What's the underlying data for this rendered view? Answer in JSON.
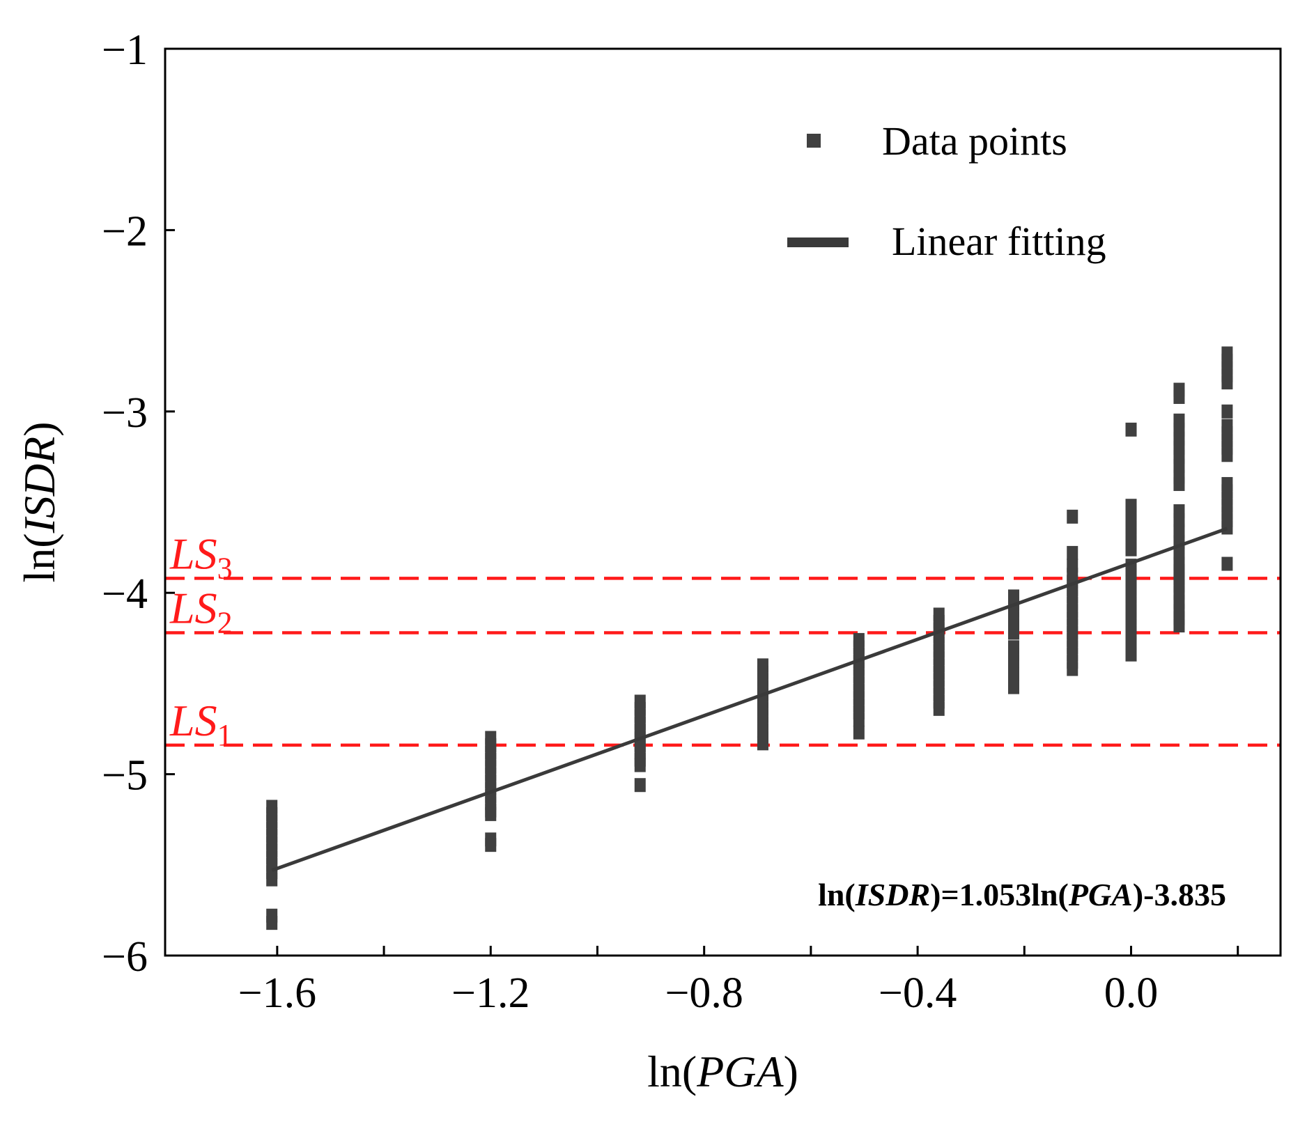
{
  "colors": {
    "data": "#404040",
    "fit": "#3a3a3a",
    "limit": "#ff1a1a",
    "axis": "#000000"
  },
  "chart_data": {
    "type": "scatter",
    "title": "",
    "xlabel": {
      "prefix": "ln(",
      "var": "PGA",
      "suffix": ")"
    },
    "ylabel": {
      "prefix": "ln(",
      "var": "ISDR",
      "suffix": ")"
    },
    "xlim": [
      -1.81,
      0.28
    ],
    "ylim": [
      -6,
      -1
    ],
    "xticks": [
      -1.6,
      -1.2,
      -0.8,
      -0.4,
      0.0
    ],
    "xtick_labels": [
      "−1.6",
      "−1.2",
      "−0.8",
      "−0.4",
      "0.0"
    ],
    "x_minor_ticks": [
      -1.4,
      -1.0,
      -0.6,
      -0.2,
      0.2
    ],
    "yticks": [
      -6,
      -5,
      -4,
      -3,
      -2,
      -1
    ],
    "ytick_labels": [
      "−6",
      "−5",
      "−4",
      "−3",
      "−2",
      "−1"
    ],
    "legend": {
      "position": "top-right",
      "entries": [
        {
          "label": "Data points",
          "marker": "square"
        },
        {
          "label": "Linear fitting",
          "marker": "line"
        }
      ]
    },
    "series": [
      {
        "name": "Data points",
        "points": [
          {
            "x": -1.61,
            "y": -5.18
          },
          {
            "x": -1.61,
            "y": -5.22
          },
          {
            "x": -1.61,
            "y": -5.26
          },
          {
            "x": -1.61,
            "y": -5.3
          },
          {
            "x": -1.61,
            "y": -5.34
          },
          {
            "x": -1.61,
            "y": -5.38
          },
          {
            "x": -1.61,
            "y": -5.42
          },
          {
            "x": -1.61,
            "y": -5.46
          },
          {
            "x": -1.61,
            "y": -5.5
          },
          {
            "x": -1.61,
            "y": -5.54
          },
          {
            "x": -1.61,
            "y": -5.58
          },
          {
            "x": -1.61,
            "y": -5.78
          },
          {
            "x": -1.61,
            "y": -5.82
          },
          {
            "x": -1.2,
            "y": -4.8
          },
          {
            "x": -1.2,
            "y": -4.84
          },
          {
            "x": -1.2,
            "y": -4.88
          },
          {
            "x": -1.2,
            "y": -4.92
          },
          {
            "x": -1.2,
            "y": -4.96
          },
          {
            "x": -1.2,
            "y": -5.0
          },
          {
            "x": -1.2,
            "y": -5.04
          },
          {
            "x": -1.2,
            "y": -5.08
          },
          {
            "x": -1.2,
            "y": -5.12
          },
          {
            "x": -1.2,
            "y": -5.16
          },
          {
            "x": -1.2,
            "y": -5.2
          },
          {
            "x": -1.2,
            "y": -5.22
          },
          {
            "x": -1.2,
            "y": -5.36
          },
          {
            "x": -1.2,
            "y": -5.39
          },
          {
            "x": -0.92,
            "y": -4.6
          },
          {
            "x": -0.92,
            "y": -4.64
          },
          {
            "x": -0.92,
            "y": -4.68
          },
          {
            "x": -0.92,
            "y": -4.72
          },
          {
            "x": -0.92,
            "y": -4.76
          },
          {
            "x": -0.92,
            "y": -4.8
          },
          {
            "x": -0.92,
            "y": -4.84
          },
          {
            "x": -0.92,
            "y": -4.88
          },
          {
            "x": -0.92,
            "y": -4.92
          },
          {
            "x": -0.92,
            "y": -4.95
          },
          {
            "x": -0.92,
            "y": -5.06
          },
          {
            "x": -0.69,
            "y": -4.4
          },
          {
            "x": -0.69,
            "y": -4.44
          },
          {
            "x": -0.69,
            "y": -4.48
          },
          {
            "x": -0.69,
            "y": -4.52
          },
          {
            "x": -0.69,
            "y": -4.56
          },
          {
            "x": -0.69,
            "y": -4.6
          },
          {
            "x": -0.69,
            "y": -4.64
          },
          {
            "x": -0.69,
            "y": -4.68
          },
          {
            "x": -0.69,
            "y": -4.72
          },
          {
            "x": -0.69,
            "y": -4.76
          },
          {
            "x": -0.69,
            "y": -4.8
          },
          {
            "x": -0.69,
            "y": -4.83
          },
          {
            "x": -0.51,
            "y": -4.26
          },
          {
            "x": -0.51,
            "y": -4.3
          },
          {
            "x": -0.51,
            "y": -4.34
          },
          {
            "x": -0.51,
            "y": -4.38
          },
          {
            "x": -0.51,
            "y": -4.42
          },
          {
            "x": -0.51,
            "y": -4.46
          },
          {
            "x": -0.51,
            "y": -4.5
          },
          {
            "x": -0.51,
            "y": -4.54
          },
          {
            "x": -0.51,
            "y": -4.58
          },
          {
            "x": -0.51,
            "y": -4.62
          },
          {
            "x": -0.51,
            "y": -4.66
          },
          {
            "x": -0.51,
            "y": -4.7
          },
          {
            "x": -0.51,
            "y": -4.77
          },
          {
            "x": -0.36,
            "y": -4.12
          },
          {
            "x": -0.36,
            "y": -4.16
          },
          {
            "x": -0.36,
            "y": -4.2
          },
          {
            "x": -0.36,
            "y": -4.24
          },
          {
            "x": -0.36,
            "y": -4.28
          },
          {
            "x": -0.36,
            "y": -4.32
          },
          {
            "x": -0.36,
            "y": -4.36
          },
          {
            "x": -0.36,
            "y": -4.4
          },
          {
            "x": -0.36,
            "y": -4.44
          },
          {
            "x": -0.36,
            "y": -4.48
          },
          {
            "x": -0.36,
            "y": -4.52
          },
          {
            "x": -0.36,
            "y": -4.56
          },
          {
            "x": -0.36,
            "y": -4.6
          },
          {
            "x": -0.36,
            "y": -4.64
          },
          {
            "x": -0.22,
            "y": -4.02
          },
          {
            "x": -0.22,
            "y": -4.06
          },
          {
            "x": -0.22,
            "y": -4.1
          },
          {
            "x": -0.22,
            "y": -4.14
          },
          {
            "x": -0.22,
            "y": -4.18
          },
          {
            "x": -0.22,
            "y": -4.22
          },
          {
            "x": -0.22,
            "y": -4.3
          },
          {
            "x": -0.22,
            "y": -4.34
          },
          {
            "x": -0.22,
            "y": -4.38
          },
          {
            "x": -0.22,
            "y": -4.45
          },
          {
            "x": -0.22,
            "y": -4.52
          },
          {
            "x": -0.11,
            "y": -3.58
          },
          {
            "x": -0.11,
            "y": -3.78
          },
          {
            "x": -0.11,
            "y": -3.85
          },
          {
            "x": -0.11,
            "y": -3.9
          },
          {
            "x": -0.11,
            "y": -3.94
          },
          {
            "x": -0.11,
            "y": -3.98
          },
          {
            "x": -0.11,
            "y": -4.02
          },
          {
            "x": -0.11,
            "y": -4.06
          },
          {
            "x": -0.11,
            "y": -4.1
          },
          {
            "x": -0.11,
            "y": -4.14
          },
          {
            "x": -0.11,
            "y": -4.18
          },
          {
            "x": -0.11,
            "y": -4.22
          },
          {
            "x": -0.11,
            "y": -4.26
          },
          {
            "x": -0.11,
            "y": -4.3
          },
          {
            "x": -0.11,
            "y": -4.34
          },
          {
            "x": -0.11,
            "y": -4.38
          },
          {
            "x": -0.11,
            "y": -4.42
          },
          {
            "x": 0.0,
            "y": -3.1
          },
          {
            "x": 0.0,
            "y": -3.52
          },
          {
            "x": 0.0,
            "y": -3.56
          },
          {
            "x": 0.0,
            "y": -3.6
          },
          {
            "x": 0.0,
            "y": -3.64
          },
          {
            "x": 0.0,
            "y": -3.68
          },
          {
            "x": 0.0,
            "y": -3.72
          },
          {
            "x": 0.0,
            "y": -3.76
          },
          {
            "x": 0.0,
            "y": -3.85
          },
          {
            "x": 0.0,
            "y": -3.9
          },
          {
            "x": 0.0,
            "y": -3.94
          },
          {
            "x": 0.0,
            "y": -3.98
          },
          {
            "x": 0.0,
            "y": -4.02
          },
          {
            "x": 0.0,
            "y": -4.06
          },
          {
            "x": 0.0,
            "y": -4.1
          },
          {
            "x": 0.0,
            "y": -4.14
          },
          {
            "x": 0.0,
            "y": -4.18
          },
          {
            "x": 0.0,
            "y": -4.22
          },
          {
            "x": 0.0,
            "y": -4.28
          },
          {
            "x": 0.0,
            "y": -4.34
          },
          {
            "x": 0.09,
            "y": -2.88
          },
          {
            "x": 0.09,
            "y": -2.92
          },
          {
            "x": 0.09,
            "y": -3.05
          },
          {
            "x": 0.09,
            "y": -3.1
          },
          {
            "x": 0.09,
            "y": -3.15
          },
          {
            "x": 0.09,
            "y": -3.2
          },
          {
            "x": 0.09,
            "y": -3.25
          },
          {
            "x": 0.09,
            "y": -3.3
          },
          {
            "x": 0.09,
            "y": -3.36
          },
          {
            "x": 0.09,
            "y": -3.4
          },
          {
            "x": 0.09,
            "y": -3.55
          },
          {
            "x": 0.09,
            "y": -3.6
          },
          {
            "x": 0.09,
            "y": -3.66
          },
          {
            "x": 0.09,
            "y": -3.72
          },
          {
            "x": 0.09,
            "y": -3.78
          },
          {
            "x": 0.09,
            "y": -3.84
          },
          {
            "x": 0.09,
            "y": -3.88
          },
          {
            "x": 0.09,
            "y": -3.92
          },
          {
            "x": 0.09,
            "y": -3.96
          },
          {
            "x": 0.09,
            "y": -4.0
          },
          {
            "x": 0.09,
            "y": -4.05
          },
          {
            "x": 0.09,
            "y": -4.1
          },
          {
            "x": 0.09,
            "y": -4.14
          },
          {
            "x": 0.09,
            "y": -4.18
          },
          {
            "x": 0.18,
            "y": -2.68
          },
          {
            "x": 0.18,
            "y": -2.72
          },
          {
            "x": 0.18,
            "y": -2.76
          },
          {
            "x": 0.18,
            "y": -2.8
          },
          {
            "x": 0.18,
            "y": -2.84
          },
          {
            "x": 0.18,
            "y": -3.0
          },
          {
            "x": 0.18,
            "y": -3.08
          },
          {
            "x": 0.18,
            "y": -3.12
          },
          {
            "x": 0.18,
            "y": -3.16
          },
          {
            "x": 0.18,
            "y": -3.2
          },
          {
            "x": 0.18,
            "y": -3.24
          },
          {
            "x": 0.18,
            "y": -3.4
          },
          {
            "x": 0.18,
            "y": -3.44
          },
          {
            "x": 0.18,
            "y": -3.48
          },
          {
            "x": 0.18,
            "y": -3.52
          },
          {
            "x": 0.18,
            "y": -3.56
          },
          {
            "x": 0.18,
            "y": -3.6
          },
          {
            "x": 0.18,
            "y": -3.64
          },
          {
            "x": 0.18,
            "y": -3.84
          }
        ]
      },
      {
        "name": "Linear fitting",
        "slope": 1.053,
        "intercept": -3.835,
        "x_range": [
          -1.61,
          0.18
        ]
      }
    ],
    "limit_lines": [
      {
        "name": "LS",
        "sub": "1",
        "y": -4.84
      },
      {
        "name": "LS",
        "sub": "2",
        "y": -4.22
      },
      {
        "name": "LS",
        "sub": "3",
        "y": -3.92
      }
    ],
    "annotation": {
      "p1": "ln(",
      "v1": "ISDR",
      "p2": ")=1.053ln(",
      "v2": "PGA",
      "p3": ")-3.835"
    }
  }
}
